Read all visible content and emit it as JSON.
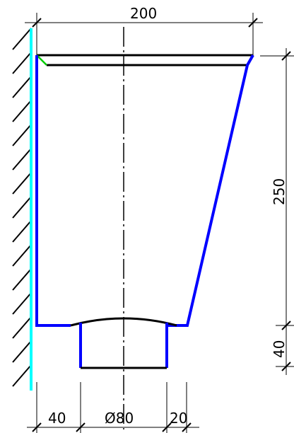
{
  "drawing": {
    "dimensions": {
      "top_width": "200",
      "height_main": "250",
      "height_base": "40",
      "bottom_left_offset": "40",
      "bottom_diameter": "Ø80",
      "bottom_right_offset": "20"
    },
    "colors": {
      "wall_line": "#00ffff",
      "outline": "#0000ff",
      "dimension_line": "#808080",
      "lip_highlight": "#00cc00",
      "black": "#000000"
    }
  }
}
